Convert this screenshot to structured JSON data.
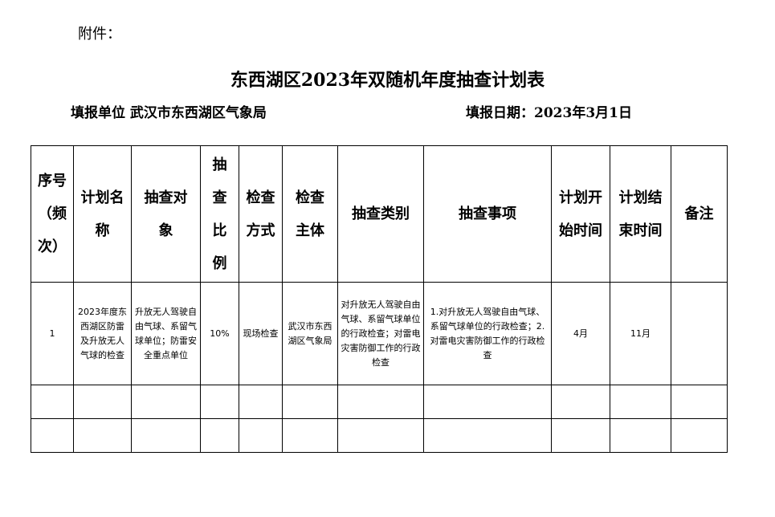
{
  "attachment": "附件：",
  "title": "东西湖区2023年双随机年度抽查计划表",
  "unit": "填报单位   武汉市东西湖区气象局",
  "date": "填报日期：2023年3月1日",
  "headers": [
    "序号\n（频\n次）",
    "计划名\n称",
    "抽查对\n象",
    "抽\n查\n比\n例",
    "检查\n方式",
    "检查\n主体",
    "抽查类别",
    "抽查事项",
    "计划开\n始时间",
    "计划结\n束时间",
    "备注"
  ],
  "rows": [
    [
      "1",
      "2023年度东西湖区防雷及升放无人气球的检查",
      "升放无人驾驶自由气球、系留气球单位；防雷安全重点单位",
      "10%",
      "现场检查",
      "武汉市东西湖区气象局",
      "对升放无人驾驶自由气球、系留气球单位的行政检查；对雷电灾害防御工作的行政检查",
      "1.对升放无人驾驶自由气球、系留气球单位的行政检查；2.对雷电灾害防御工作的行政检查",
      "4月",
      "11月",
      ""
    ]
  ]
}
